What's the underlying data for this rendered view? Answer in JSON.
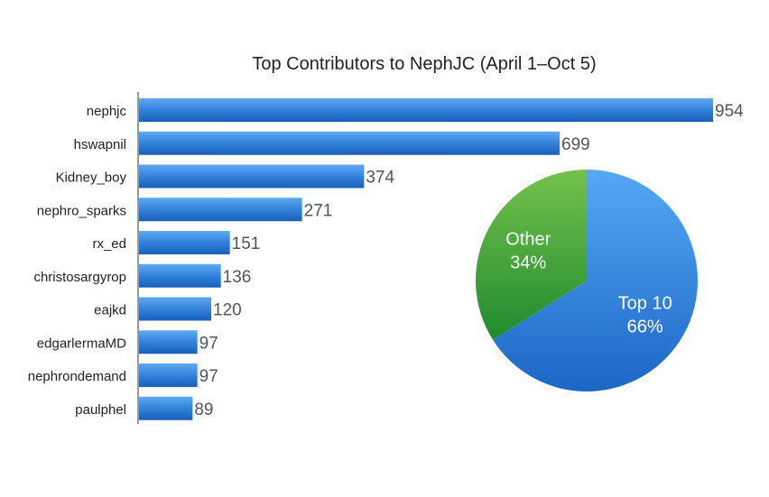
{
  "chart_data": [
    {
      "type": "bar",
      "orientation": "horizontal",
      "title": "Top Contributors to NephJC (April 1–Oct 5)",
      "categories": [
        "nephjc",
        "hswapnil",
        "Kidney_boy",
        "nephro_sparks",
        "rx_ed",
        "christosargyrop",
        "eajkd",
        "edgarlermaMD",
        "nephrondemand",
        "paulphel"
      ],
      "values": [
        954,
        699,
        374,
        271,
        151,
        136,
        120,
        97,
        97,
        89
      ],
      "xlim": [
        0,
        954
      ],
      "grid": false,
      "bar_color": "#2f7fd9"
    },
    {
      "type": "pie",
      "labels": [
        "Top 10",
        "Other"
      ],
      "values": [
        66,
        34
      ],
      "value_labels": [
        "66%",
        "34%"
      ],
      "colors": [
        "#2f80de",
        "#4cb046"
      ]
    }
  ]
}
